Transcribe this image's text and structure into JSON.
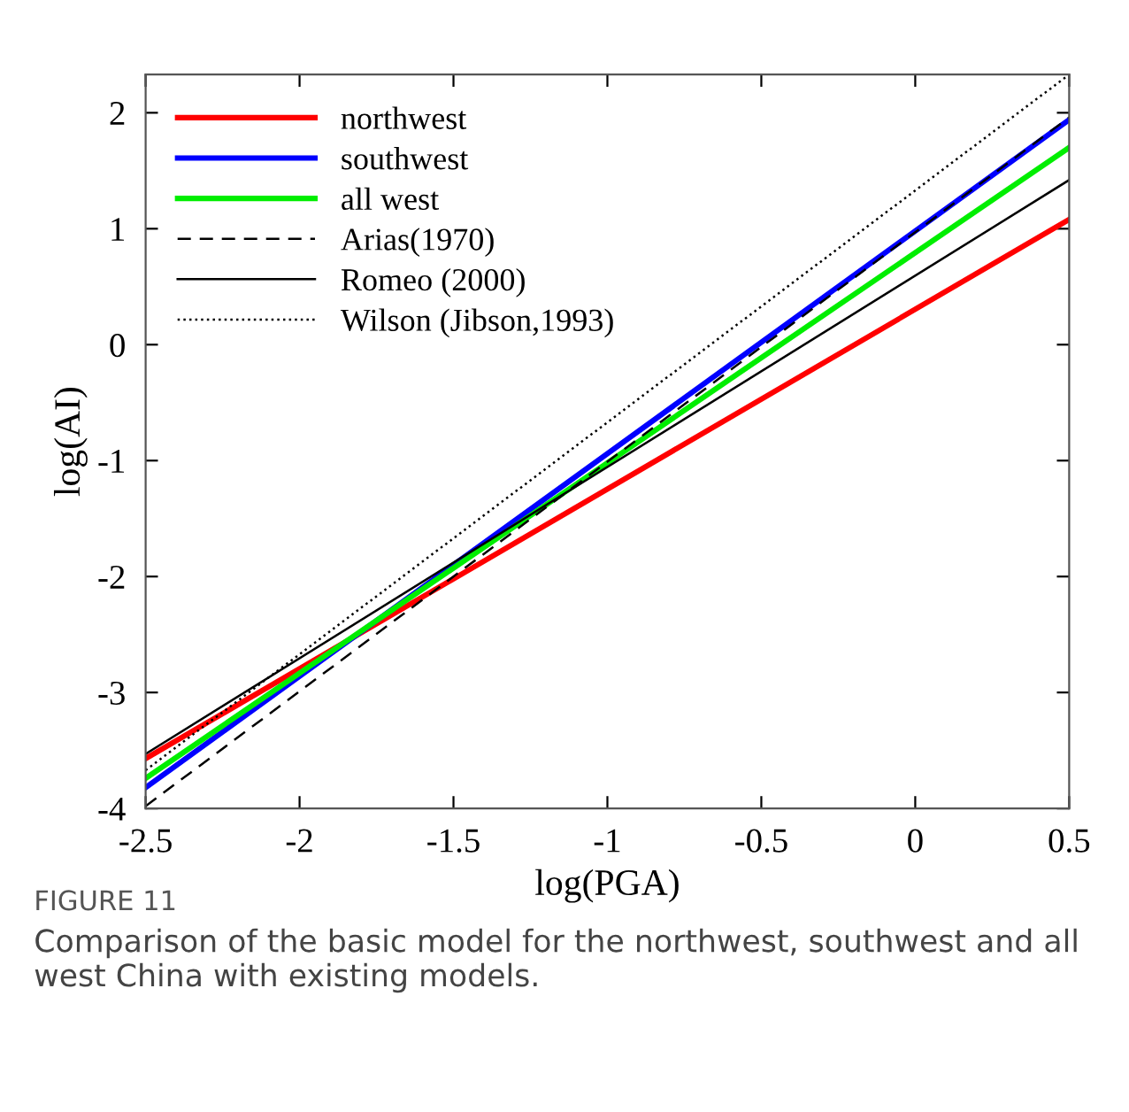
{
  "chart_data": {
    "type": "line",
    "xlabel": "log(PGA)",
    "ylabel": "log(AI)",
    "x": [
      -2.5,
      0.5
    ],
    "series": [
      {
        "name": "northwest",
        "color": "#ff0000",
        "values": [
          -3.57,
          1.08
        ],
        "line_style": "solid"
      },
      {
        "name": "southwest",
        "color": "#0000ff",
        "values": [
          -3.82,
          1.94
        ],
        "line_style": "solid"
      },
      {
        "name": "all west",
        "color": "#00ee00",
        "values": [
          -3.74,
          1.7
        ],
        "line_style": "solid"
      },
      {
        "name": "Arias(1970)",
        "color": "#000000",
        "values": [
          -3.98,
          1.96
        ],
        "line_style": "dashed"
      },
      {
        "name": "Romeo (2000)",
        "color": "#000000",
        "values": [
          -3.53,
          1.42
        ],
        "line_style": "solid"
      },
      {
        "name": "Wilson (Jibson,1993)",
        "color": "#000000",
        "values": [
          -3.67,
          2.33
        ],
        "line_style": "dotted"
      }
    ],
    "xlim": [
      -2.5,
      0.5
    ],
    "ylim": [
      -4,
      2.33
    ],
    "xticks": [
      -2.5,
      -2,
      -1.5,
      -1,
      -0.5,
      0,
      0.5
    ],
    "yticks": [
      -4,
      -3,
      -2,
      -1,
      0,
      1,
      2
    ],
    "grid": false,
    "legend": "top left",
    "marker": "none",
    "annotations": [
      "FIGURE 11",
      "Comparison of the basic model for the northwest, southwest and all west China with existing models."
    ]
  }
}
